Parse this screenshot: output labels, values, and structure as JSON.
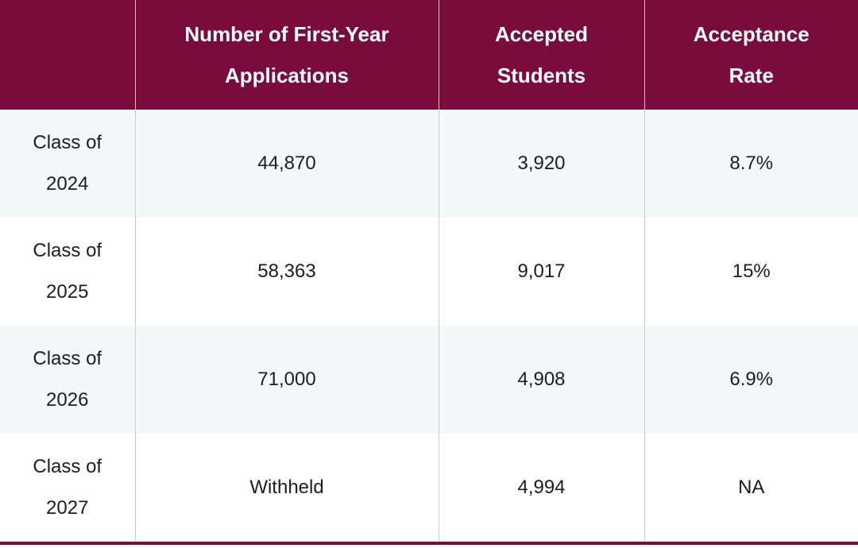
{
  "table": {
    "columns": [
      "Number of First-Year Applications",
      "Accepted Students",
      "Acceptance Rate"
    ],
    "rows": [
      {
        "label": "Class of 2024",
        "cells": [
          "44,870",
          "3,920",
          "8.7%"
        ]
      },
      {
        "label": "Class of 2025",
        "cells": [
          "58,363",
          "9,017",
          "15%"
        ]
      },
      {
        "label": "Class of 2026",
        "cells": [
          "71,000",
          "4,908",
          "6.9%"
        ]
      },
      {
        "label": "Class of 2027",
        "cells": [
          "Withheld",
          "4,994",
          "NA"
        ]
      }
    ]
  }
}
